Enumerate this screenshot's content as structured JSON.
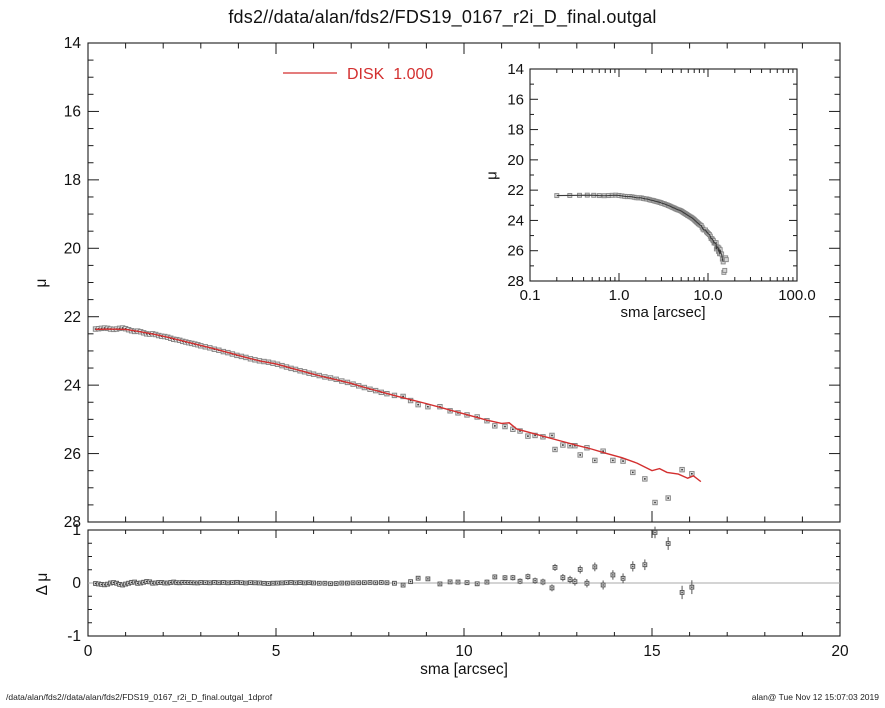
{
  "title": "fds2//data/alan/fds2/FDS19_0167_r2i_D_final.outgal",
  "footer": {
    "left": "/data/alan/fds2//data/alan/fds2/FDS19_0167_r2i_D_final.outgal_1dprof",
    "right": "alan@  Tue Nov 12 15:07:03 2019"
  },
  "colors": {
    "model_red": "#d32f2f",
    "frame": "#1c1c1c",
    "marker_stroke": "#878787",
    "marker_fill": "#ececec",
    "marker_core": "#333333",
    "inset_line": "#3a3a3a",
    "zero_line": "#a9a9a9",
    "text": "#111111"
  },
  "chart_data": {
    "type": "scatter",
    "panels": {
      "main": {
        "ylabel": "μ",
        "xlim": [
          0,
          20
        ],
        "ylim_top_bottom": [
          14,
          28
        ],
        "x_ticks": [
          0,
          5,
          10,
          15,
          20
        ],
        "x_minor_step": 1,
        "y_ticks": [
          14,
          16,
          18,
          20,
          22,
          24,
          26,
          28
        ],
        "y_minor_step": 0.5,
        "x_tick_labels_shown": false,
        "legend": {
          "label": "DISK  1.000",
          "type": "line"
        }
      },
      "inset": {
        "xlabel": "sma [arcsec]",
        "ylabel": "μ",
        "xscale": "log",
        "xlim": [
          0.1,
          100.0
        ],
        "ylim_top_bottom": [
          14,
          28
        ],
        "x_ticks": [
          0.1,
          1.0,
          10.0,
          100.0
        ],
        "x_tick_labels": [
          "0.1",
          "1.0",
          "10.0",
          "100.0"
        ],
        "y_ticks": [
          14,
          16,
          18,
          20,
          22,
          24,
          26,
          28
        ],
        "y_minor_step": 1
      },
      "residual": {
        "xlabel": "sma [arcsec]",
        "ylabel": "Δ μ",
        "xlim": [
          0,
          20
        ],
        "ylim_top_bottom": [
          1,
          -1
        ],
        "x_ticks": [
          0,
          5,
          10,
          15,
          20
        ],
        "x_minor_step": 1,
        "y_ticks": [
          1,
          0,
          -1
        ],
        "y_minor_step": 0.25,
        "zero_line": true
      }
    },
    "series": [
      {
        "name": "surface-brightness-data",
        "marker": "open-square",
        "points": [
          [
            0.2,
            22.36
          ],
          [
            0.28,
            22.35
          ],
          [
            0.36,
            22.34
          ],
          [
            0.44,
            22.33
          ],
          [
            0.52,
            22.34
          ],
          [
            0.6,
            22.36
          ],
          [
            0.68,
            22.37
          ],
          [
            0.76,
            22.36
          ],
          [
            0.84,
            22.34
          ],
          [
            0.92,
            22.33
          ],
          [
            1.0,
            22.35
          ],
          [
            1.08,
            22.38
          ],
          [
            1.16,
            22.41
          ],
          [
            1.24,
            22.43
          ],
          [
            1.32,
            22.42
          ],
          [
            1.4,
            22.44
          ],
          [
            1.48,
            22.47
          ],
          [
            1.56,
            22.5
          ],
          [
            1.64,
            22.51
          ],
          [
            1.72,
            22.5
          ],
          [
            1.8,
            22.52
          ],
          [
            1.88,
            22.55
          ],
          [
            1.96,
            22.57
          ],
          [
            2.04,
            22.58
          ],
          [
            2.12,
            22.6
          ],
          [
            2.2,
            22.63
          ],
          [
            2.28,
            22.66
          ],
          [
            2.36,
            22.67
          ],
          [
            2.44,
            22.69
          ],
          [
            2.52,
            22.72
          ],
          [
            2.6,
            22.74
          ],
          [
            2.68,
            22.76
          ],
          [
            2.76,
            22.78
          ],
          [
            2.84,
            22.8
          ],
          [
            2.92,
            22.82
          ],
          [
            3.0,
            22.85
          ],
          [
            3.12,
            22.88
          ],
          [
            3.24,
            22.91
          ],
          [
            3.36,
            22.95
          ],
          [
            3.48,
            22.98
          ],
          [
            3.6,
            23.02
          ],
          [
            3.72,
            23.05
          ],
          [
            3.84,
            23.09
          ],
          [
            3.96,
            23.13
          ],
          [
            4.08,
            23.16
          ],
          [
            4.2,
            23.19
          ],
          [
            4.32,
            23.23
          ],
          [
            4.44,
            23.26
          ],
          [
            4.56,
            23.29
          ],
          [
            4.68,
            23.31
          ],
          [
            4.8,
            23.33
          ],
          [
            4.92,
            23.36
          ],
          [
            5.04,
            23.39
          ],
          [
            5.16,
            23.43
          ],
          [
            5.28,
            23.47
          ],
          [
            5.4,
            23.51
          ],
          [
            5.52,
            23.54
          ],
          [
            5.64,
            23.58
          ],
          [
            5.76,
            23.61
          ],
          [
            5.88,
            23.65
          ],
          [
            6.0,
            23.68
          ],
          [
            6.15,
            23.72
          ],
          [
            6.3,
            23.76
          ],
          [
            6.45,
            23.79
          ],
          [
            6.6,
            23.83
          ],
          [
            6.75,
            23.88
          ],
          [
            6.9,
            23.92
          ],
          [
            7.05,
            23.97
          ],
          [
            7.2,
            24.02
          ],
          [
            7.35,
            24.07
          ],
          [
            7.5,
            24.12
          ],
          [
            7.65,
            24.16
          ],
          [
            7.8,
            24.21
          ],
          [
            7.95,
            24.25
          ],
          [
            8.15,
            24.3
          ],
          [
            8.38,
            24.33
          ],
          [
            8.58,
            24.45
          ],
          [
            8.78,
            24.57
          ],
          [
            9.04,
            24.63
          ],
          [
            9.36,
            24.63
          ],
          [
            9.63,
            24.75
          ],
          [
            9.84,
            24.81
          ],
          [
            10.08,
            24.87
          ],
          [
            10.35,
            24.93
          ],
          [
            10.61,
            25.04
          ],
          [
            10.82,
            25.19
          ],
          [
            11.09,
            25.21
          ],
          [
            11.3,
            25.29
          ],
          [
            11.49,
            25.34
          ],
          [
            11.7,
            25.49
          ],
          [
            11.89,
            25.47
          ],
          [
            12.1,
            25.51
          ],
          [
            12.34,
            25.47
          ],
          [
            12.42,
            25.88
          ],
          [
            12.63,
            25.75
          ],
          [
            12.82,
            25.77
          ],
          [
            12.95,
            25.77
          ],
          [
            13.09,
            26.04
          ],
          [
            13.27,
            25.83
          ],
          [
            13.48,
            26.2
          ],
          [
            13.7,
            25.93
          ],
          [
            13.96,
            26.2
          ],
          [
            14.23,
            26.22
          ],
          [
            14.49,
            26.55
          ],
          [
            14.81,
            26.74
          ],
          [
            15.08,
            27.43
          ],
          [
            15.43,
            27.3
          ],
          [
            15.8,
            26.47
          ],
          [
            16.06,
            26.59
          ]
        ],
        "errors_vs_sma": [
          [
            0.2,
            0.008
          ],
          [
            4.0,
            0.01
          ],
          [
            7.0,
            0.02
          ],
          [
            9.0,
            0.03
          ],
          [
            10.5,
            0.045
          ],
          [
            12.0,
            0.06
          ],
          [
            13.0,
            0.075
          ],
          [
            14.0,
            0.09
          ],
          [
            14.8,
            0.1
          ],
          [
            15.4,
            0.12
          ],
          [
            16.06,
            0.13
          ]
        ]
      },
      {
        "name": "DISK 1.000",
        "type": "line",
        "points": [
          [
            0.2,
            22.37
          ],
          [
            0.6,
            22.36
          ],
          [
            1.0,
            22.37
          ],
          [
            1.4,
            22.44
          ],
          [
            1.8,
            22.52
          ],
          [
            2.2,
            22.62
          ],
          [
            2.6,
            22.73
          ],
          [
            3.0,
            22.84
          ],
          [
            3.4,
            22.95
          ],
          [
            3.8,
            23.07
          ],
          [
            4.2,
            23.19
          ],
          [
            4.6,
            23.3
          ],
          [
            5.0,
            23.38
          ],
          [
            5.4,
            23.5
          ],
          [
            5.8,
            23.62
          ],
          [
            6.2,
            23.74
          ],
          [
            6.6,
            23.84
          ],
          [
            7.0,
            23.95
          ],
          [
            7.4,
            24.08
          ],
          [
            7.8,
            24.2
          ],
          [
            8.2,
            24.32
          ],
          [
            8.6,
            24.43
          ],
          [
            9.0,
            24.54
          ],
          [
            9.4,
            24.66
          ],
          [
            9.8,
            24.78
          ],
          [
            10.2,
            24.9
          ],
          [
            10.6,
            25.02
          ],
          [
            11.0,
            25.12
          ],
          [
            11.2,
            25.1
          ],
          [
            11.4,
            25.28
          ],
          [
            11.8,
            25.4
          ],
          [
            12.2,
            25.52
          ],
          [
            12.6,
            25.64
          ],
          [
            13.0,
            25.76
          ],
          [
            13.4,
            25.87
          ],
          [
            13.8,
            26.0
          ],
          [
            14.2,
            26.12
          ],
          [
            14.6,
            26.28
          ],
          [
            15.0,
            26.5
          ],
          [
            15.2,
            26.44
          ],
          [
            15.4,
            26.55
          ],
          [
            15.7,
            26.6
          ],
          [
            15.95,
            26.72
          ],
          [
            16.1,
            26.65
          ],
          [
            16.3,
            26.82
          ]
        ]
      }
    ],
    "residual_definition": "data_minus_model"
  }
}
